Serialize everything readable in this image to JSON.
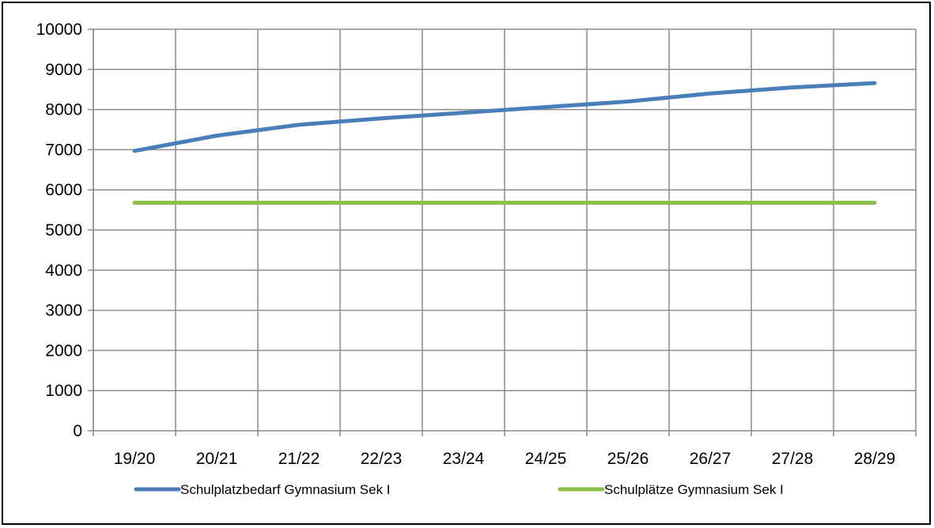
{
  "chart_data": {
    "type": "line",
    "title": "",
    "xlabel": "",
    "ylabel": "",
    "categories": [
      "19/20",
      "20/21",
      "21/22",
      "22/23",
      "23/24",
      "24/25",
      "25/26",
      "26/27",
      "27/28",
      "28/29"
    ],
    "ylim": [
      0,
      10000
    ],
    "yticks": [
      0,
      1000,
      2000,
      3000,
      4000,
      5000,
      6000,
      7000,
      8000,
      9000,
      10000
    ],
    "grid": true,
    "legend_position": "bottom",
    "series": [
      {
        "name": "Schulplatzbedarf Gymnasium Sek I",
        "color": "#4a7ebb",
        "values": [
          6970,
          7350,
          7620,
          7780,
          7920,
          8060,
          8200,
          8400,
          8550,
          8660
        ]
      },
      {
        "name": "Schulplätze Gymnasium Sek I",
        "color": "#8cbf46",
        "values": [
          5680,
          5680,
          5680,
          5680,
          5680,
          5680,
          5680,
          5680,
          5680,
          5680
        ]
      }
    ]
  }
}
